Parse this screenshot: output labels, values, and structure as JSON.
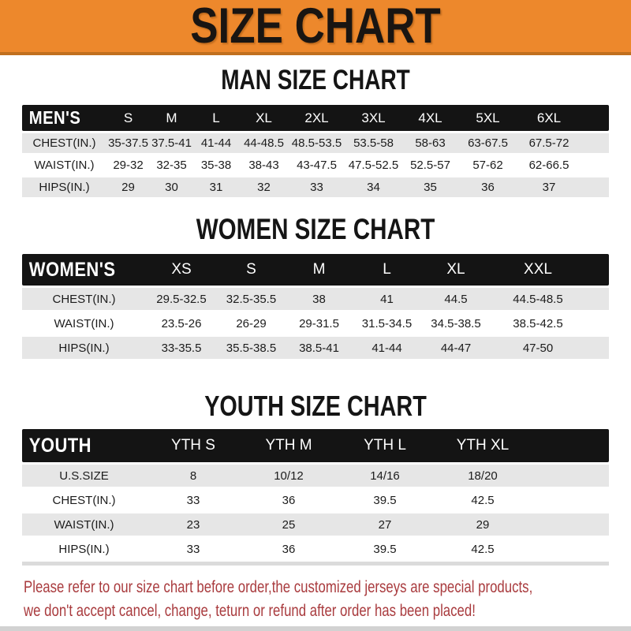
{
  "banner": {
    "title": "SIZE CHART",
    "background_color": "#ED882C",
    "text_color": "#191512"
  },
  "colors": {
    "table_header_bg": "#141414",
    "table_header_text": "#ffffff",
    "row_shade": "#E6E6E6",
    "footer_text": "#A93B3E"
  },
  "sections": [
    {
      "title": "MAN SIZE CHART",
      "header_label": "MEN'S",
      "columns": [
        "S",
        "M",
        "L",
        "XL",
        "2XL",
        "3XL",
        "4XL",
        "5XL",
        "6XL"
      ],
      "rows": [
        {
          "label": "CHEST(IN.)",
          "values": [
            "35-37.5",
            "37.5-41",
            "41-44",
            "44-48.5",
            "48.5-53.5",
            "53.5-58",
            "58-63",
            "63-67.5",
            "67.5-72"
          ]
        },
        {
          "label": "WAIST(IN.)",
          "values": [
            "29-32",
            "32-35",
            "35-38",
            "38-43",
            "43-47.5",
            "47.5-52.5",
            "52.5-57",
            "57-62",
            "62-66.5"
          ]
        },
        {
          "label": "HIPS(IN.)",
          "values": [
            "29",
            "30",
            "31",
            "32",
            "33",
            "34",
            "35",
            "36",
            "37"
          ]
        }
      ]
    },
    {
      "title": "WOMEN SIZE CHART",
      "header_label": "WOMEN'S",
      "columns": [
        "XS",
        "S",
        "M",
        "L",
        "XL",
        "XXL"
      ],
      "rows": [
        {
          "label": "CHEST(IN.)",
          "values": [
            "29.5-32.5",
            "32.5-35.5",
            "38",
            "41",
            "44.5",
            "44.5-48.5"
          ]
        },
        {
          "label": "WAIST(IN.)",
          "values": [
            "23.5-26",
            "26-29",
            "29-31.5",
            "31.5-34.5",
            "34.5-38.5",
            "38.5-42.5"
          ]
        },
        {
          "label": "HIPS(IN.)",
          "values": [
            "33-35.5",
            "35.5-38.5",
            "38.5-41",
            "41-44",
            "44-47",
            "47-50"
          ]
        }
      ]
    },
    {
      "title": "YOUTH SIZE CHART",
      "header_label": "YOUTH",
      "columns": [
        "YTH S",
        "YTH M",
        "YTH L",
        "YTH XL"
      ],
      "rows": [
        {
          "label": "U.S.SIZE",
          "values": [
            "8",
            "10/12",
            "14/16",
            "18/20"
          ]
        },
        {
          "label": "CHEST(IN.)",
          "values": [
            "33",
            "36",
            "39.5",
            "42.5"
          ]
        },
        {
          "label": "WAIST(IN.)",
          "values": [
            "23",
            "25",
            "27",
            "29"
          ]
        },
        {
          "label": "HIPS(IN.)",
          "values": [
            "33",
            "36",
            "39.5",
            "42.5"
          ]
        }
      ]
    }
  ],
  "footer": {
    "line1": "Please refer to our size chart before order,the customized jerseys are special products,",
    "line2": "we don't accept cancel, change, teturn or refund after order has been placed!"
  }
}
